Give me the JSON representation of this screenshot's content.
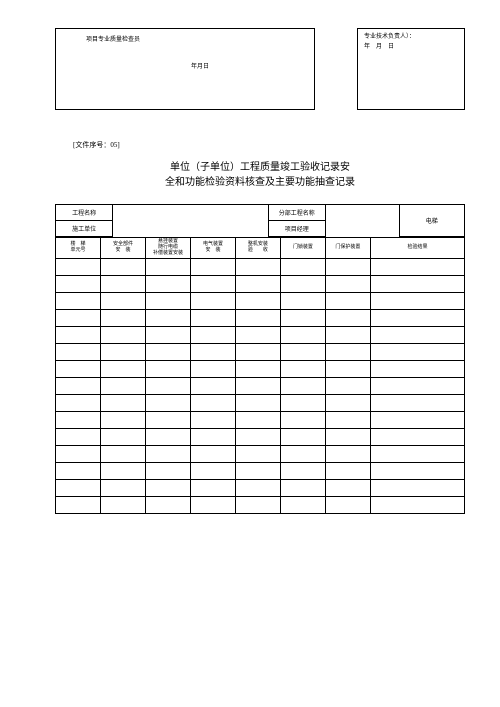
{
  "top_box": {
    "left_label": "项目专业质量检查员",
    "left_date": "年月日",
    "right_line1": "专业技术负责人）：",
    "right_line2": "年　月　日"
  },
  "file_seq_label": "[文件序号：",
  "file_seq_num": "05]",
  "title_line1": "单位（子单位）工程质量竣工验收记录安",
  "title_line2": "全和功能检验资料核查及主要功能抽查记录",
  "info": {
    "r1c1": "工程名称",
    "r1c2": "",
    "r1c3": "分部工程名称",
    "r1c4": "",
    "r1c5": "电梯",
    "r2c1": "施工单位",
    "r2c3": "项目经理"
  },
  "headers": {
    "h1a": "楼　梯",
    "h1b": "单元号",
    "h2a": "安全部件",
    "h2b": "安　装",
    "h3a": "悬挂装置",
    "h3b": "随行电缆",
    "h3c": "补偿装置安装",
    "h4a": "电气装置",
    "h4b": "安　装",
    "h5a": "整机安装",
    "h5b": "验　　收",
    "h6": "门锁装置",
    "h7": "门保护装置",
    "h8": "检验结果"
  },
  "num_rows": 15,
  "colors": {
    "border": "#000000",
    "bg": "#ffffff"
  }
}
